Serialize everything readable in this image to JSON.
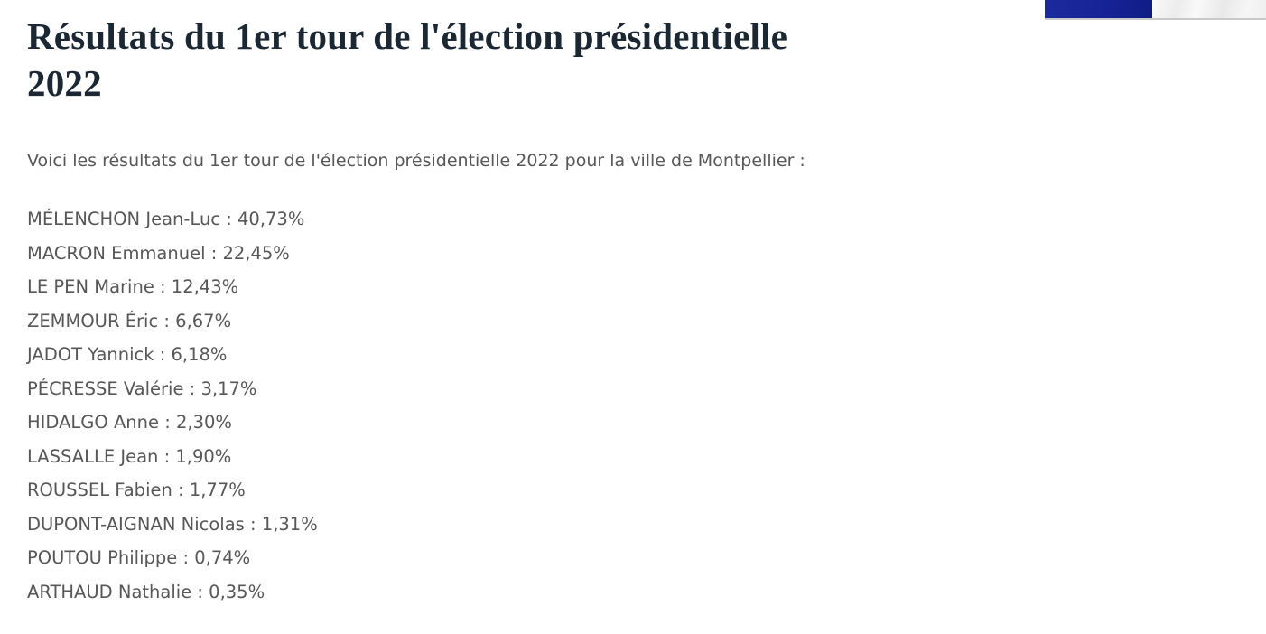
{
  "header": {
    "title_line1": "Résultats du 1er tour de l'élection présidentielle",
    "title_line2": "2022",
    "title_color": "#1b2732"
  },
  "flag_image": {
    "description": "french-flag-photo-fragment",
    "blue_color": "#172395",
    "border_color": "#c9c9c9"
  },
  "intro": {
    "text": "Voici les résultats du 1er tour de l'élection présidentielle 2022 pour la ville de Montpellier :"
  },
  "results": {
    "separator": " : ",
    "items": [
      {
        "candidate": "MÉLENCHON Jean-Luc",
        "percentage": "40,73%"
      },
      {
        "candidate": "MACRON Emmanuel",
        "percentage": "22,45%"
      },
      {
        "candidate": "LE PEN Marine",
        "percentage": "12,43%"
      },
      {
        "candidate": "ZEMMOUR Éric",
        "percentage": "6,67%"
      },
      {
        "candidate": "JADOT Yannick",
        "percentage": "6,18%"
      },
      {
        "candidate": "PÉCRESSE Valérie",
        "percentage": "3,17%"
      },
      {
        "candidate": "HIDALGO Anne",
        "percentage": "2,30%"
      },
      {
        "candidate": "LASSALLE Jean",
        "percentage": "1,90%"
      },
      {
        "candidate": "ROUSSEL Fabien",
        "percentage": "1,77%"
      },
      {
        "candidate": "DUPONT-AIGNAN Nicolas",
        "percentage": "1,31%"
      },
      {
        "candidate": "POUTOU Philippe",
        "percentage": "0,74%"
      },
      {
        "candidate": "ARTHAUD Nathalie",
        "percentage": "0,35%"
      }
    ]
  }
}
